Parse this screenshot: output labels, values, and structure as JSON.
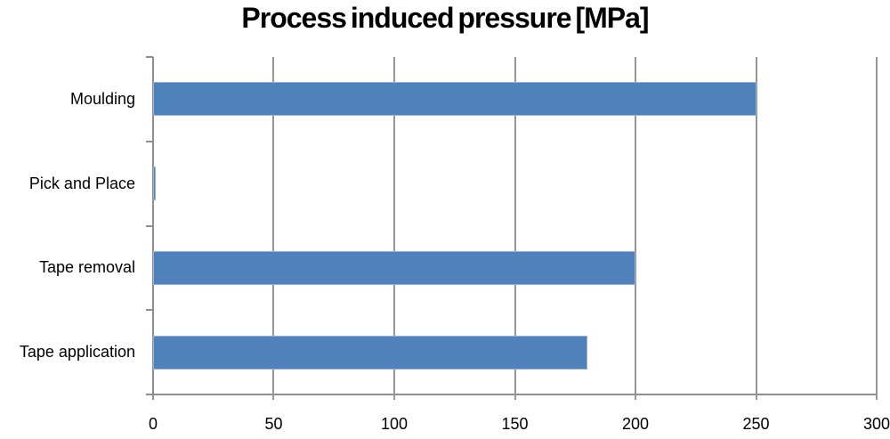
{
  "chart_data": {
    "type": "bar",
    "orientation": "horizontal",
    "title": "Process induced pressure [MPa]",
    "categories": [
      "Moulding",
      "Pick and Place",
      "Tape removal",
      "Tape application"
    ],
    "values": [
      250,
      1,
      200,
      180
    ],
    "xlabel": "",
    "ylabel": "",
    "xlim": [
      0,
      300
    ],
    "xticks": [
      0,
      50,
      100,
      150,
      200,
      250,
      300
    ],
    "grid": true,
    "legend": false,
    "colors": {
      "bar_fill": "#4f81bd",
      "bar_border": "#95b3d7",
      "gridline": "#969696",
      "axis": "#8f8f8f",
      "text": "#000000",
      "background": "#ffffff"
    }
  }
}
